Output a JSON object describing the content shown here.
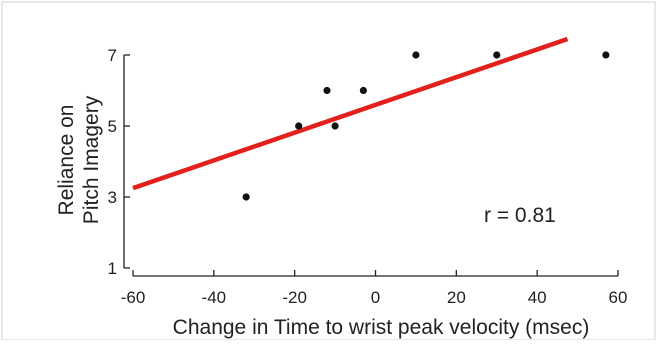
{
  "chart_data": {
    "type": "scatter",
    "xlabel": "Change in Time to wrist peak velocity (msec)",
    "ylabel_lines": [
      "Reliance on",
      "Pitch Imagery"
    ],
    "xlim": [
      -60,
      60
    ],
    "ylim": [
      1,
      7
    ],
    "x_ticks": [
      -60,
      -40,
      -20,
      0,
      20,
      40,
      60
    ],
    "y_ticks": [
      1,
      3,
      5,
      7
    ],
    "x_tick_labels": [
      "-60",
      "-40",
      "-20",
      "0",
      "20",
      "40",
      "60"
    ],
    "y_tick_labels": [
      "1",
      "3",
      "5",
      "7"
    ],
    "points": [
      {
        "x": -32,
        "y": 3
      },
      {
        "x": -19,
        "y": 5
      },
      {
        "x": -12,
        "y": 6
      },
      {
        "x": -10,
        "y": 5
      },
      {
        "x": -3,
        "y": 6
      },
      {
        "x": 10,
        "y": 7
      },
      {
        "x": 30,
        "y": 7
      },
      {
        "x": 57,
        "y": 7
      }
    ],
    "fit_line": {
      "x": [
        -60,
        47.5
      ],
      "y": [
        3.25,
        7.45
      ],
      "color": "#e3201b"
    },
    "annotation": "r = 0.81",
    "point_color": "#111111",
    "grid": false
  }
}
